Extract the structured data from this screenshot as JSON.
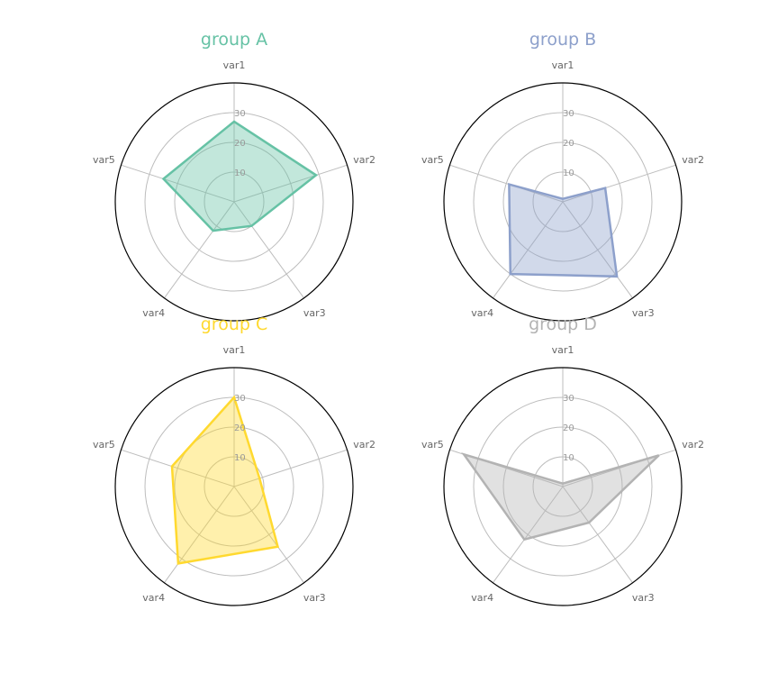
{
  "chart_data": [
    {
      "type": "radar",
      "title": "group A",
      "color": "#66c2a5",
      "categories": [
        "var1",
        "var2",
        "var3",
        "var4",
        "var5"
      ],
      "values": [
        27,
        29,
        10,
        12,
        25
      ],
      "ticks": [
        "10",
        "20",
        "30"
      ],
      "rlim": [
        0,
        40
      ],
      "grid": true
    },
    {
      "type": "radar",
      "title": "group B",
      "color": "#8da0cb",
      "categories": [
        "var1",
        "var2",
        "var3",
        "var4",
        "var5"
      ],
      "values": [
        1,
        15,
        31,
        30,
        19
      ],
      "ticks": [
        "10",
        "20",
        "30"
      ],
      "rlim": [
        0,
        40
      ],
      "grid": true
    },
    {
      "type": "radar",
      "title": "group C",
      "color": "#ffd92f",
      "categories": [
        "var1",
        "var2",
        "var3",
        "var4",
        "var5"
      ],
      "values": [
        30,
        9,
        25,
        32,
        22
      ],
      "ticks": [
        "10",
        "20",
        "30"
      ],
      "rlim": [
        0,
        40
      ],
      "grid": true
    },
    {
      "type": "radar",
      "title": "group D",
      "color": "#b3b3b3",
      "categories": [
        "var1",
        "var2",
        "var3",
        "var4",
        "var5"
      ],
      "values": [
        1,
        34,
        15,
        22,
        35
      ],
      "ticks": [
        "10",
        "20",
        "30"
      ],
      "rlim": [
        0,
        40
      ],
      "grid": true
    }
  ]
}
